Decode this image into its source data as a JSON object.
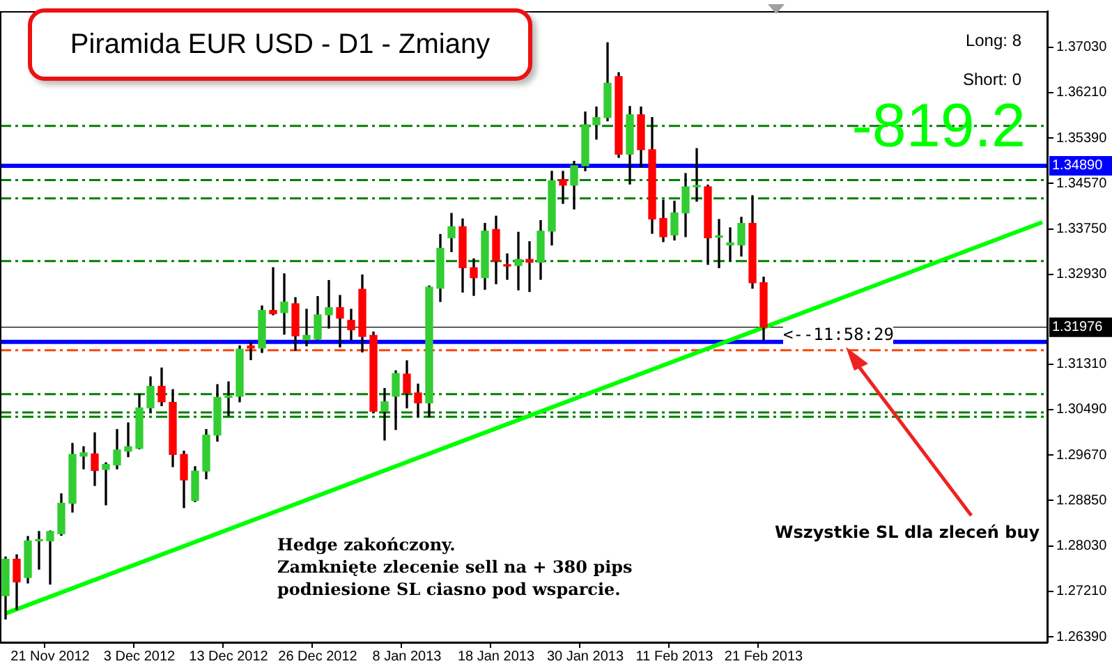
{
  "chart_data": {
    "type": "candlestick",
    "title": "Piramida EUR USD - D1 - Zmiany",
    "categories": [
      null,
      null,
      null,
      null,
      "21 Nov 2012",
      null,
      null,
      null,
      null,
      null,
      null,
      null,
      "3 Dec 2012",
      null,
      null,
      null,
      null,
      null,
      null,
      null,
      "13 Dec 2012",
      null,
      null,
      null,
      null,
      null,
      null,
      null,
      "26 Dec 2012",
      null,
      null,
      null,
      null,
      null,
      null,
      null,
      "8 Jan 2013",
      null,
      null,
      null,
      null,
      null,
      null,
      null,
      "18 Jan 2013",
      null,
      null,
      null,
      null,
      null,
      null,
      null,
      "30 Jan 2013",
      null,
      null,
      null,
      null,
      null,
      null,
      null,
      "11 Feb 2013",
      null,
      null,
      null,
      null,
      null,
      null,
      null,
      "21 Feb 2013",
      null,
      null,
      null,
      null,
      null,
      null,
      null,
      null,
      null,
      null,
      null,
      null,
      null,
      null,
      null,
      null,
      null,
      null,
      null,
      null,
      null,
      null,
      null,
      null,
      null
    ],
    "ohlc": [
      [
        1.2713,
        1.2783,
        1.2671,
        1.2779
      ],
      [
        1.2779,
        1.2787,
        1.2688,
        1.2738
      ],
      [
        1.2746,
        1.282,
        1.2736,
        1.2812
      ],
      [
        1.2812,
        1.2829,
        1.2761,
        1.2813
      ],
      [
        1.2812,
        1.283,
        1.2734,
        1.2829
      ],
      [
        1.2825,
        1.2897,
        1.2822,
        1.288
      ],
      [
        1.288,
        1.2988,
        1.2864,
        1.2968
      ],
      [
        1.2965,
        1.2982,
        1.2942,
        1.2971
      ],
      [
        1.2969,
        1.3007,
        1.2912,
        1.2939
      ],
      [
        1.2941,
        1.2953,
        1.2877,
        1.295
      ],
      [
        1.2949,
        1.3013,
        1.2942,
        1.2976
      ],
      [
        1.2974,
        1.3025,
        1.2964,
        1.2982
      ],
      [
        1.2979,
        1.3077,
        1.2978,
        1.3052
      ],
      [
        1.3052,
        1.3108,
        1.3044,
        1.3091
      ],
      [
        1.3091,
        1.3124,
        1.3056,
        1.3063
      ],
      [
        1.3062,
        1.3085,
        1.2946,
        1.2968
      ],
      [
        1.2968,
        1.2974,
        1.2872,
        1.2922
      ],
      [
        1.2885,
        1.2946,
        1.2883,
        1.2938
      ],
      [
        1.2938,
        1.3013,
        1.2924,
        1.3003
      ],
      [
        1.3003,
        1.3094,
        1.2992,
        1.3071
      ],
      [
        1.3071,
        1.3099,
        1.3038,
        1.3073
      ],
      [
        1.3073,
        1.3164,
        1.3063,
        1.3158
      ],
      [
        1.3164,
        1.317,
        1.3139,
        1.316
      ],
      [
        1.316,
        1.3236,
        1.3152,
        1.3228
      ],
      [
        1.3228,
        1.3305,
        1.322,
        1.3222
      ],
      [
        1.3224,
        1.3294,
        1.3185,
        1.3243
      ],
      [
        1.324,
        1.3251,
        1.3156,
        1.3182
      ],
      [
        1.3175,
        1.323,
        1.3164,
        1.3183
      ],
      [
        1.3176,
        1.3253,
        1.3175,
        1.322
      ],
      [
        1.322,
        1.3282,
        1.3196,
        1.3233
      ],
      [
        1.3233,
        1.3255,
        1.3162,
        1.3214
      ],
      [
        1.321,
        1.323,
        1.3175,
        1.3193
      ],
      [
        1.3266,
        1.3292,
        1.3153,
        1.3181
      ],
      [
        1.3183,
        1.3189,
        1.3044,
        1.3046
      ],
      [
        1.3046,
        1.3087,
        1.2994,
        1.3063
      ],
      [
        1.3073,
        1.3119,
        1.3013,
        1.3114
      ],
      [
        1.3113,
        1.3137,
        1.3052,
        1.3079
      ],
      [
        1.3079,
        1.3095,
        1.3036,
        1.3061
      ],
      [
        1.3061,
        1.3272,
        1.3036,
        1.327
      ],
      [
        1.3268,
        1.3365,
        1.3244,
        1.334
      ],
      [
        1.3359,
        1.3403,
        1.3334,
        1.3379
      ],
      [
        1.3379,
        1.3393,
        1.3261,
        1.3305
      ],
      [
        1.3305,
        1.3321,
        1.3255,
        1.3287
      ],
      [
        1.3287,
        1.3385,
        1.3266,
        1.3371
      ],
      [
        1.3374,
        1.3398,
        1.3276,
        1.3317
      ],
      [
        1.3309,
        1.333,
        1.3284,
        1.3308
      ],
      [
        1.3309,
        1.3369,
        1.3265,
        1.332
      ],
      [
        1.332,
        1.3352,
        1.3262,
        1.3315
      ],
      [
        1.3315,
        1.339,
        1.3284,
        1.3371
      ],
      [
        1.3371,
        1.3479,
        1.3346,
        1.3462
      ],
      [
        1.3464,
        1.3479,
        1.3421,
        1.3454
      ],
      [
        1.3454,
        1.3497,
        1.3411,
        1.3489
      ],
      [
        1.3489,
        1.3586,
        1.348,
        1.3563
      ],
      [
        1.3563,
        1.3595,
        1.3537,
        1.3576
      ],
      [
        1.3576,
        1.3711,
        1.357,
        1.3638
      ],
      [
        1.365,
        1.3657,
        1.3504,
        1.351
      ],
      [
        1.351,
        1.3596,
        1.3456,
        1.3581
      ],
      [
        1.3581,
        1.3595,
        1.3487,
        1.3518
      ],
      [
        1.3518,
        1.3576,
        1.3367,
        1.3393
      ],
      [
        1.3394,
        1.3427,
        1.3352,
        1.3361
      ],
      [
        1.3364,
        1.3425,
        1.3355,
        1.3404
      ],
      [
        1.3404,
        1.3475,
        1.3361,
        1.3451
      ],
      [
        1.3451,
        1.352,
        1.3425,
        1.3452
      ],
      [
        1.3451,
        1.3454,
        1.3311,
        1.3359
      ],
      [
        1.336,
        1.3392,
        1.3305,
        1.3361
      ],
      [
        1.3346,
        1.3377,
        1.3317,
        1.335
      ],
      [
        1.3346,
        1.3396,
        1.3326,
        1.3385
      ],
      [
        1.3385,
        1.3435,
        1.3268,
        1.3278
      ],
      [
        1.3278,
        1.3288,
        1.3175,
        1.31976
      ],
      null,
      null,
      null,
      null,
      null,
      null,
      null,
      null,
      null,
      null,
      null,
      null,
      null,
      null,
      null,
      null,
      null,
      null,
      null,
      null,
      null,
      null,
      null,
      null,
      null
    ],
    "colors": [
      "#32cd32",
      "#ff0000",
      "#32cd32",
      "#32cd32",
      "#32cd32",
      "#32cd32",
      "#32cd32",
      "#32cd32",
      "#ff0000",
      "#32cd32",
      "#32cd32",
      "#32cd32",
      "#32cd32",
      "#32cd32",
      "#ff0000",
      "#ff0000",
      "#ff0000",
      "#32cd32",
      "#32cd32",
      "#32cd32",
      "#32cd32",
      "#32cd32",
      "#ff0000",
      "#32cd32",
      "#ff0000",
      "#32cd32",
      "#ff0000",
      "#32cd32",
      "#32cd32",
      "#32cd32",
      "#ff0000",
      "#ff0000",
      "#ff0000",
      "#ff0000",
      "#32cd32",
      "#32cd32",
      "#ff0000",
      "#ff0000",
      "#32cd32",
      "#32cd32",
      "#32cd32",
      "#ff0000",
      "#ff0000",
      "#32cd32",
      "#ff0000",
      "#ff0000",
      "#32cd32",
      "#ff0000",
      "#32cd32",
      "#32cd32",
      "#ff0000",
      "#32cd32",
      "#32cd32",
      "#32cd32",
      "#32cd32",
      "#ff0000",
      "#32cd32",
      "#ff0000",
      "#ff0000",
      "#ff0000",
      "#32cd32",
      "#32cd32",
      "#32cd32",
      "#ff0000",
      "#32cd32",
      "#32cd32",
      "#32cd32",
      "#ff0000",
      "#ff0000",
      null,
      null,
      null,
      null,
      null,
      null,
      null,
      null,
      null,
      null,
      null,
      null,
      null,
      null,
      null,
      null,
      null,
      null,
      null,
      null,
      null,
      null,
      null,
      null,
      null
    ],
    "series": [
      {
        "type": "line",
        "color": "#00ff00",
        "values": [
          1.2681,
          null,
          null,
          null,
          null,
          null,
          null,
          null,
          null,
          null,
          null,
          null,
          null,
          null,
          null,
          null,
          null,
          null,
          null,
          null,
          null,
          null,
          null,
          null,
          null,
          null,
          null,
          null,
          null,
          null,
          null,
          null,
          null,
          null,
          null,
          null,
          null,
          null,
          null,
          null,
          null,
          null,
          null,
          null,
          null,
          null,
          null,
          null,
          null,
          null,
          null,
          null,
          null,
          null,
          null,
          null,
          null,
          null,
          null,
          null,
          null,
          null,
          null,
          null,
          null,
          null,
          null,
          null,
          null,
          null,
          null,
          null,
          null,
          null,
          null,
          null,
          null,
          null,
          null,
          null,
          null,
          null,
          null,
          null,
          null,
          null,
          null,
          null,
          null,
          null,
          null,
          null,
          null,
          1.3387
        ]
      }
    ],
    "ylim": [
      1.2629,
      1.3768
    ],
    "yticks": [
      {
        "value": 1.3703,
        "label": "1.37030"
      },
      {
        "value": 1.3621,
        "label": "1.36210"
      },
      {
        "value": 1.3539,
        "label": "1.35390"
      },
      {
        "value": 1.3457,
        "label": "1.34570"
      },
      {
        "value": 1.3375,
        "label": "1.33750"
      },
      {
        "value": 1.3293,
        "label": "1.32930"
      },
      {
        "value": 1.3131,
        "label": "1.31310"
      },
      {
        "value": 1.3049,
        "label": "1.30490"
      },
      {
        "value": 1.2967,
        "label": "1.29670"
      },
      {
        "value": 1.2885,
        "label": "1.28850"
      },
      {
        "value": 1.2803,
        "label": "1.28030"
      },
      {
        "value": 1.2721,
        "label": "1.27210"
      },
      {
        "value": 1.2639,
        "label": "1.26390"
      }
    ],
    "ref_lines": [
      {
        "axis": "y",
        "value": 1.3489,
        "label": "1.34890",
        "color": "#0000ff",
        "line_style": "solid"
      },
      {
        "axis": "y",
        "value": 1.31976,
        "label": "1.31976",
        "color": "#000000",
        "line_style": "solid"
      },
      {
        "axis": "y",
        "value": 1.3171,
        "color": "#0000ff",
        "line_style": "solid"
      },
      {
        "axis": "y",
        "value": 1.3156,
        "color": "#ff4500",
        "line_style": "dashed"
      },
      {
        "axis": "y",
        "value": 1.3561,
        "color": "#008000",
        "line_style": "dashed"
      },
      {
        "axis": "y",
        "value": 1.3463,
        "color": "#008000",
        "line_style": "dashed"
      },
      {
        "axis": "y",
        "value": 1.343,
        "color": "#008000",
        "line_style": "dashed"
      },
      {
        "axis": "y",
        "value": 1.3317,
        "color": "#008000",
        "line_style": "dashed"
      },
      {
        "axis": "y",
        "value": 1.3077,
        "color": "#008000",
        "line_style": "dashed"
      },
      {
        "axis": "y",
        "value": 1.3044,
        "color": "#008000",
        "line_style": "dashed"
      },
      {
        "axis": "y",
        "value": 1.3036,
        "color": "#008000",
        "line_style": "dashed"
      }
    ],
    "annotations": [
      "Long: 8",
      "Short: 0",
      "-819.2",
      "<--11:58:29",
      "Hedge zakończony.\nZamknięte zlecenie sell na + 380 pips\npodniesione SL ciasno pod wsparcie.",
      "Wszystkie SL dla zleceń buy"
    ],
    "legend": false,
    "grid": false
  }
}
